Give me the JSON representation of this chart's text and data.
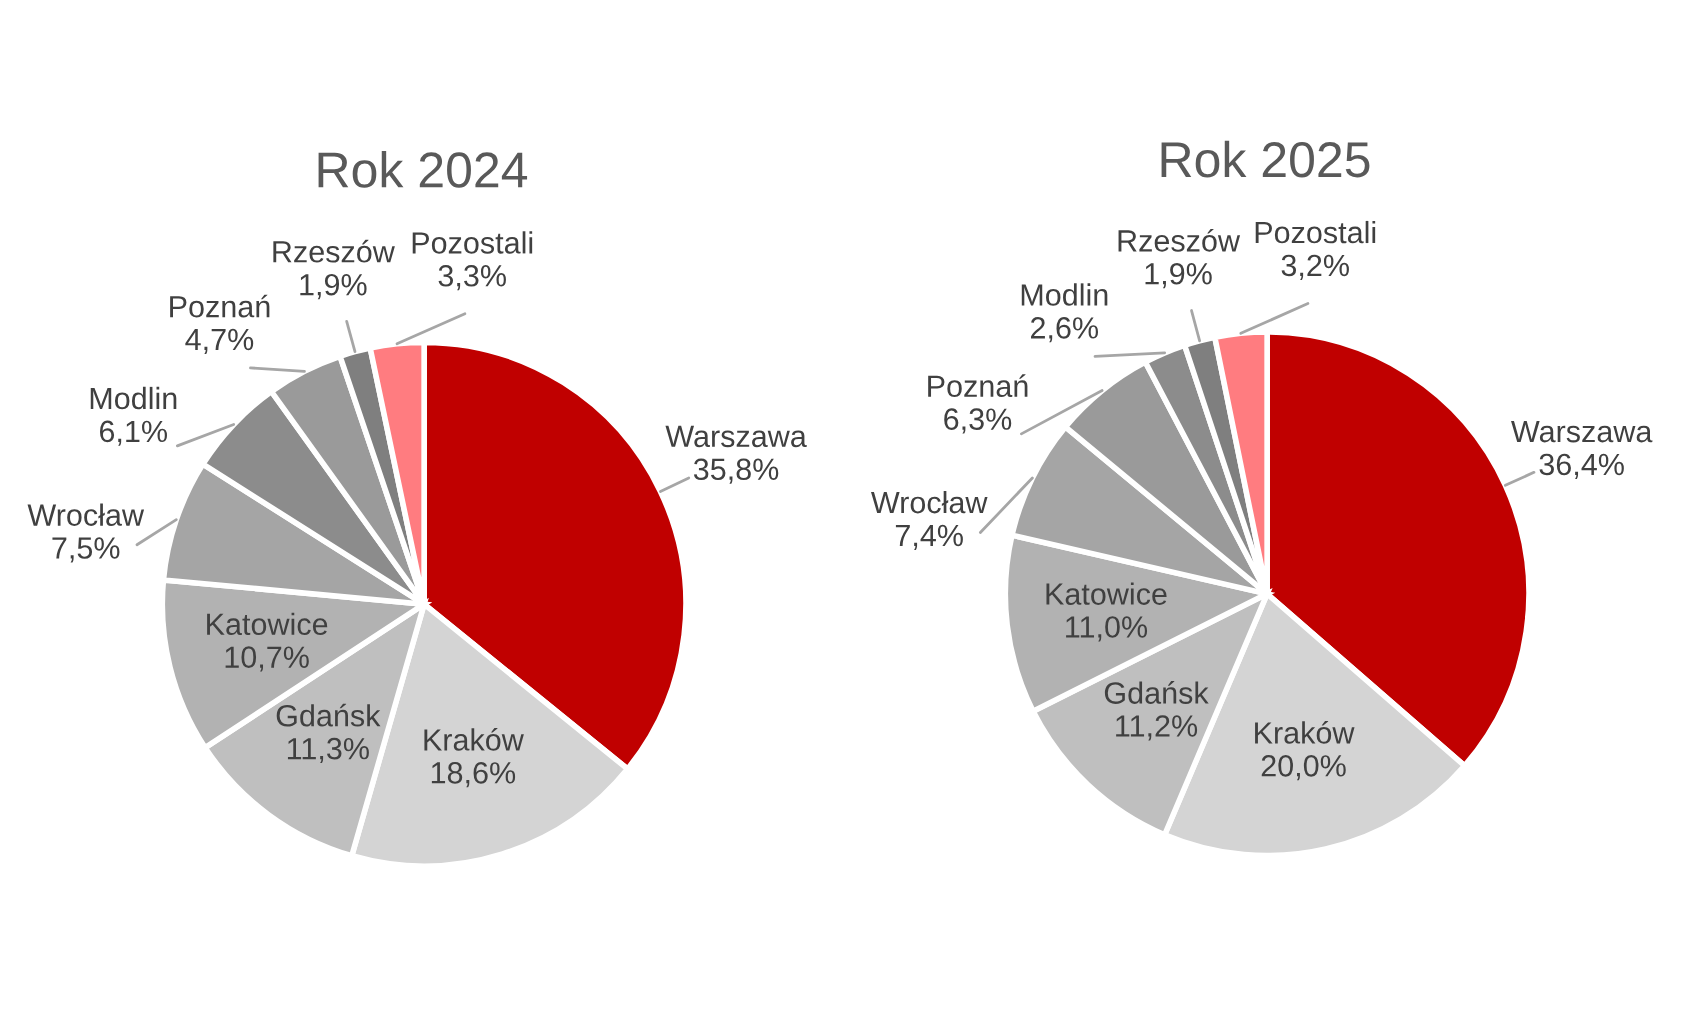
{
  "chart_data": [
    {
      "type": "pie",
      "title": "Rok 2024",
      "categories": [
        "Warszawa",
        "Kraków",
        "Gdańsk",
        "Katowice",
        "Wrocław",
        "Modlin",
        "Poznań",
        "Rzeszów",
        "Pozostali"
      ],
      "values": [
        35.8,
        18.6,
        11.3,
        10.7,
        7.5,
        6.1,
        4.7,
        1.9,
        3.3
      ],
      "value_labels": [
        "35,8%",
        "18,6%",
        "11,3%",
        "10,7%",
        "7,5%",
        "6,1%",
        "4,7%",
        "1,9%",
        "3,3%"
      ],
      "colors": [
        "#c00000",
        "#d4d4d4",
        "#bfbfbf",
        "#b2b2b2",
        "#a5a5a5",
        "#8c8c8c",
        "#9a9a9a",
        "#7f7f7f",
        "#ff7c80"
      ]
    },
    {
      "type": "pie",
      "title": "Rok 2025",
      "categories": [
        "Warszawa",
        "Kraków",
        "Gdańsk",
        "Katowice",
        "Wrocław",
        "Poznań",
        "Modlin",
        "Rzeszów",
        "Pozostali"
      ],
      "values": [
        36.4,
        20.0,
        11.2,
        11.0,
        7.4,
        6.3,
        2.6,
        1.9,
        3.2
      ],
      "value_labels": [
        "36,4%",
        "20,0%",
        "11,2%",
        "11,0%",
        "7,4%",
        "6,3%",
        "2,6%",
        "1,9%",
        "3,2%"
      ],
      "colors": [
        "#c00000",
        "#d4d4d4",
        "#bfbfbf",
        "#b2b2b2",
        "#a5a5a5",
        "#9a9a9a",
        "#8c8c8c",
        "#7f7f7f",
        "#ff7c80"
      ]
    }
  ]
}
